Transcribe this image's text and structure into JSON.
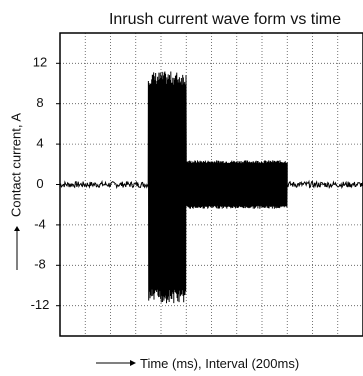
{
  "chart_data": {
    "type": "line",
    "title": "Inrush current wave form vs time",
    "xlabel": "Time (ms), Interval (200ms)",
    "ylabel": "Contact current, A",
    "xlim": [
      0,
      1200
    ],
    "ylim": [
      -15,
      15
    ],
    "x_grid_step": 100,
    "y_ticks": [
      12,
      8,
      4,
      0,
      -4,
      -8,
      -12
    ],
    "grid": true,
    "grid_style": "dotted",
    "series": [
      {
        "color": "#000000",
        "envelope": [
          {
            "x_start": 0,
            "x_end": 350,
            "upper": 0.3,
            "lower": -0.3
          },
          {
            "x_start": 350,
            "x_end": 500,
            "upper": 11.2,
            "lower": -11.8
          },
          {
            "x_start": 500,
            "x_end": 900,
            "upper": 2.4,
            "lower": -2.4
          },
          {
            "x_start": 900,
            "x_end": 1200,
            "upper": 0.3,
            "lower": -0.3
          }
        ]
      }
    ]
  }
}
